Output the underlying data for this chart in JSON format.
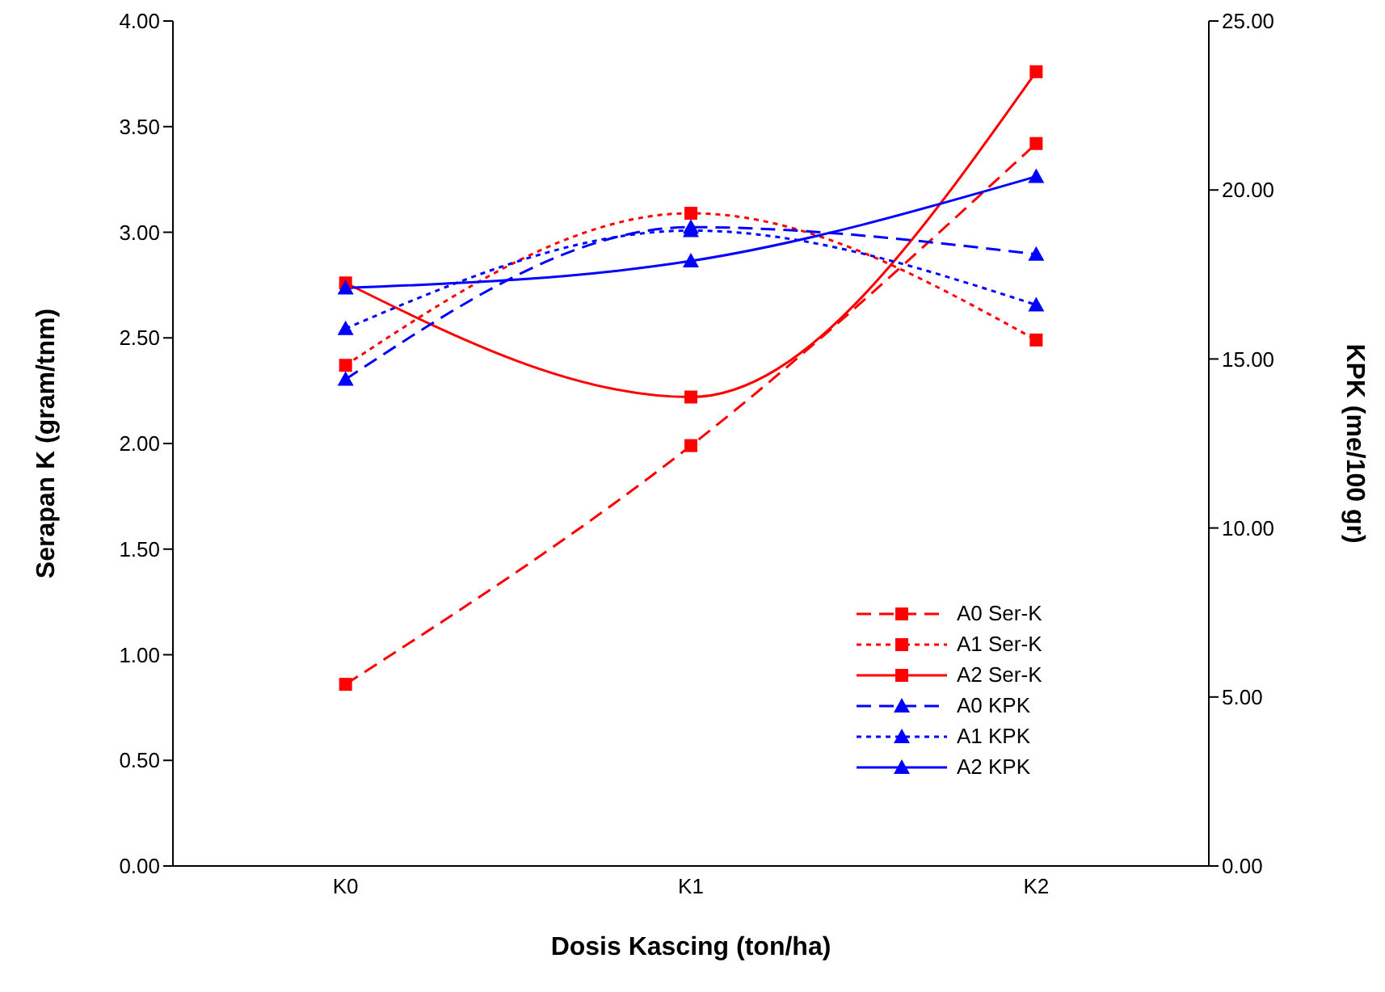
{
  "chart_data": {
    "type": "line",
    "xlabel": "Dosis Kascing (ton/ha)",
    "ylabel": "Serapan K (gram/tnm)",
    "y2label": "KPK (me/100 gr)",
    "categories": [
      "K0",
      "K1",
      "K2"
    ],
    "ylim": [
      0,
      4
    ],
    "yticks": [
      {
        "value": 0,
        "label": "0.00"
      },
      {
        "value": 0.5,
        "label": "0.50"
      },
      {
        "value": 1,
        "label": "1.00"
      },
      {
        "value": 1.5,
        "label": "1.50"
      },
      {
        "value": 2,
        "label": "2.00"
      },
      {
        "value": 2.5,
        "label": "2.50"
      },
      {
        "value": 3,
        "label": "3.00"
      },
      {
        "value": 3.5,
        "label": "3.50"
      },
      {
        "value": 4,
        "label": "4.00"
      }
    ],
    "y2lim": [
      0,
      25
    ],
    "y2ticks": [
      {
        "value": 0,
        "label": "0.00"
      },
      {
        "value": 5,
        "label": "5.00"
      },
      {
        "value": 10,
        "label": "10.00"
      },
      {
        "value": 15,
        "label": "15.00"
      },
      {
        "value": 20,
        "label": "20.00"
      },
      {
        "value": 25,
        "label": "25.00"
      }
    ],
    "grid": false,
    "legend": "bottom right",
    "series": [
      {
        "name": "A0 Ser-K",
        "color": "#ff0000",
        "values": [
          0.86,
          1.99,
          3.42
        ],
        "line_style": "dashed",
        "marker": "square"
      },
      {
        "name": "A1 Ser-K",
        "color": "#ff0000",
        "values": [
          2.37,
          3.09,
          2.49
        ],
        "line_style": "dotted",
        "marker": "square"
      },
      {
        "name": "A2 Ser-K",
        "color": "#ff0000",
        "values": [
          2.76,
          2.22,
          3.76
        ],
        "line_style": "solid",
        "marker": "square"
      },
      {
        "name": "A0 KPK",
        "color": "#0000ff",
        "values": [
          14.4,
          18.9,
          18.1
        ],
        "line_style": "dashed",
        "marker": "triangle",
        "axis": "y2"
      },
      {
        "name": "A1 KPK",
        "color": "#0000ff",
        "values": [
          15.9,
          18.8,
          16.6
        ],
        "line_style": "dotted",
        "marker": "triangle",
        "axis": "y2"
      },
      {
        "name": "A2 KPK",
        "color": "#0000ff",
        "values": [
          17.1,
          17.9,
          20.4
        ],
        "line_style": "solid",
        "marker": "triangle",
        "axis": "y2"
      }
    ]
  }
}
